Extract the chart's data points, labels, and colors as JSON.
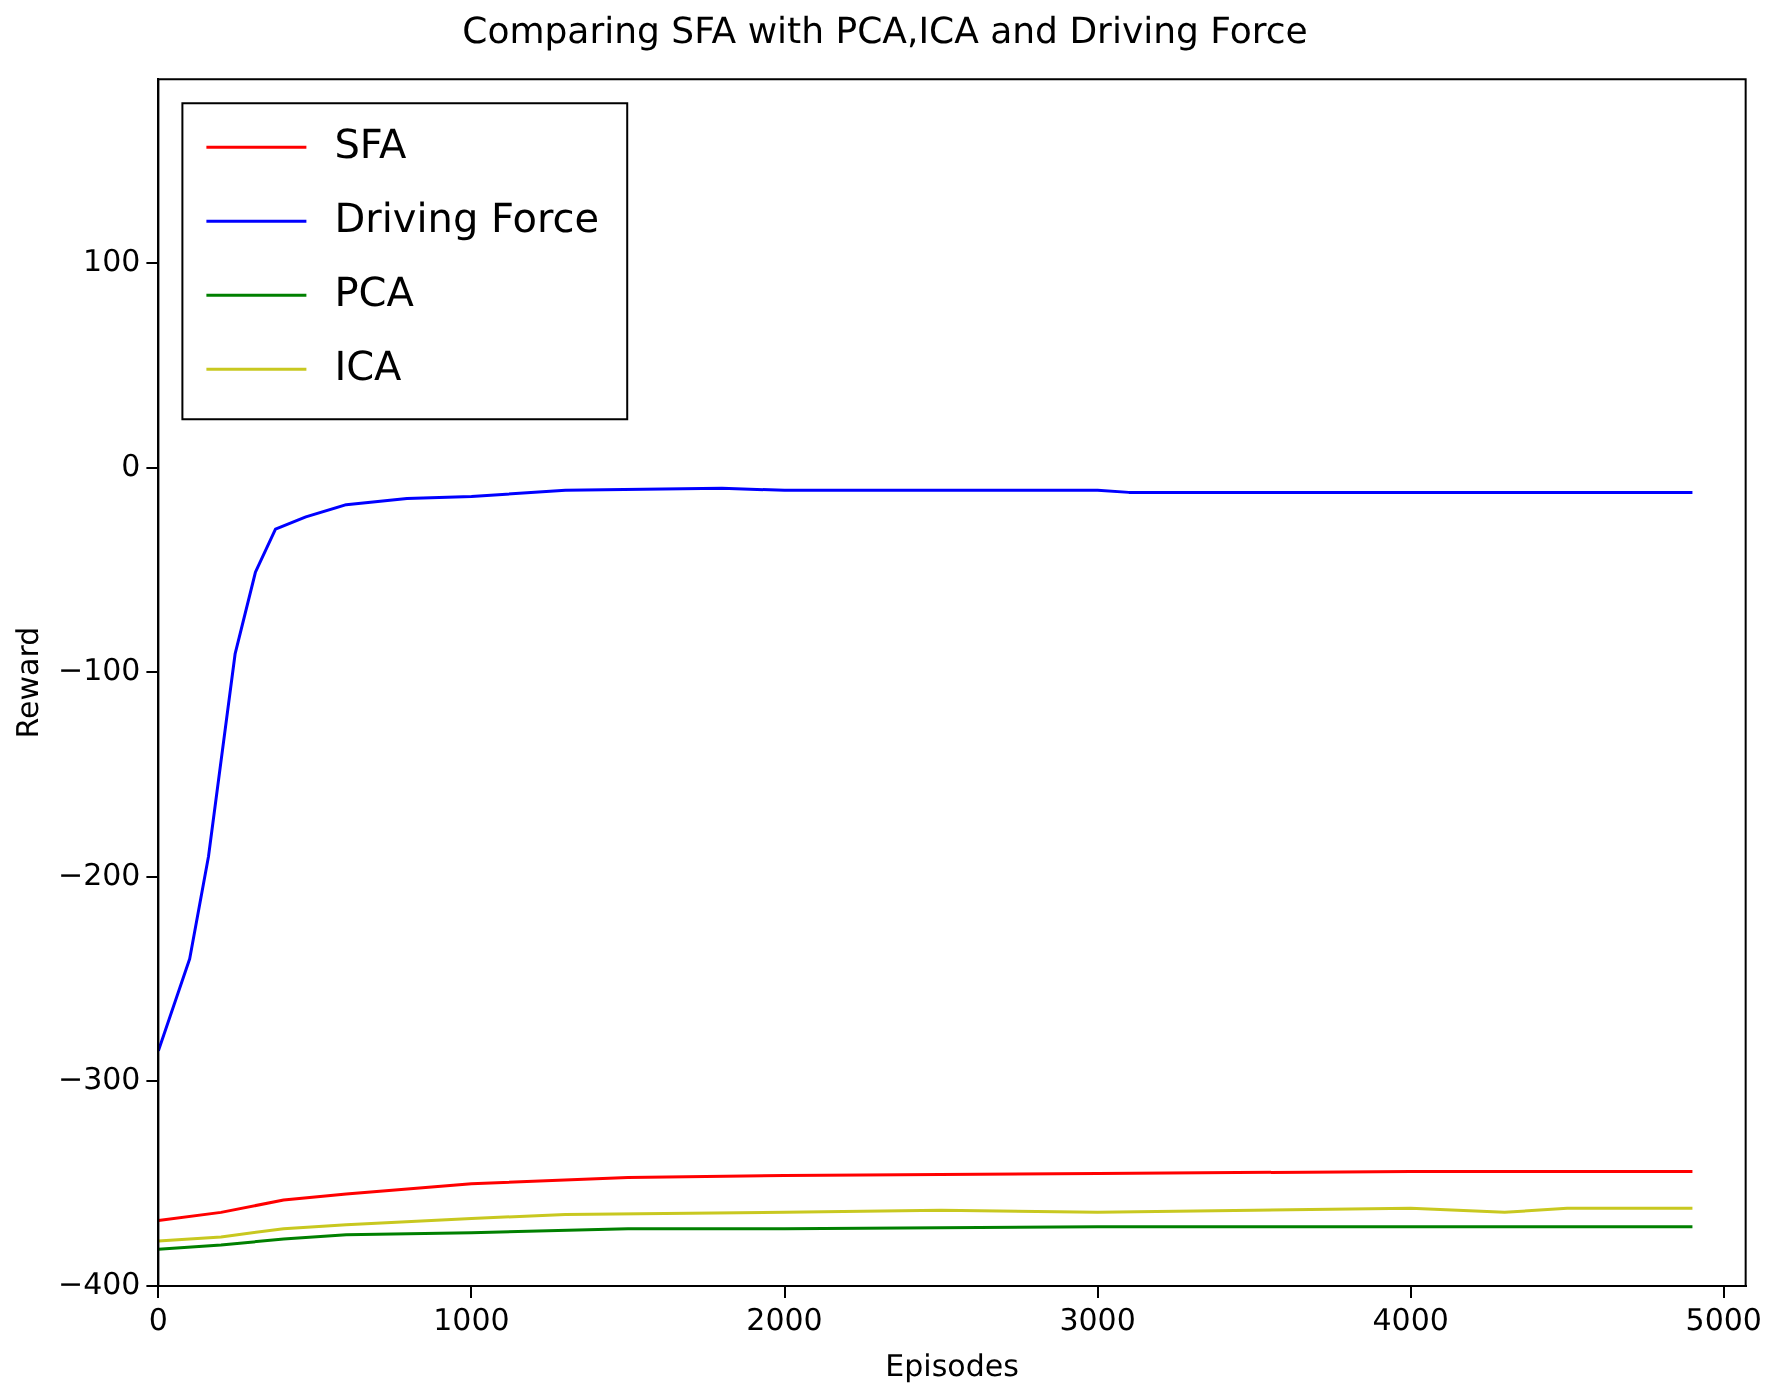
{
  "chart_data": {
    "type": "line",
    "title": "Comparing SFA with PCA,ICA and Driving Force",
    "xlabel": "Episodes",
    "ylabel": "Reward",
    "xlim": [
      0,
      5070
    ],
    "xticks": [
      0,
      1000,
      2000,
      3000,
      4000,
      5000
    ],
    "ylim": [
      -400,
      190
    ],
    "yticks": [
      -400,
      -300,
      -200,
      -100,
      0,
      100
    ],
    "grid": false,
    "legend": "top left",
    "marker": "none",
    "line_style": "solid",
    "series": [
      {
        "name": "SFA",
        "color": "#ff0000",
        "x": [
          0,
          200,
          400,
          600,
          1000,
          1500,
          2000,
          3000,
          4000,
          4900
        ],
        "values": [
          -368,
          -364,
          -358,
          -355,
          -350,
          -347,
          -346,
          -345,
          -344,
          -344
        ]
      },
      {
        "name": "Driving Force",
        "color": "#0000ff",
        "x": [
          0,
          100,
          160,
          245,
          310,
          374,
          471,
          600,
          794,
          1000,
          1300,
          1800,
          2000,
          3000,
          3100,
          4900
        ],
        "values": [
          -285,
          -240,
          -190,
          -91,
          -51,
          -30,
          -24,
          -18,
          -15,
          -14,
          -11,
          -10,
          -11,
          -11,
          -12,
          -12
        ]
      },
      {
        "name": "PCA",
        "color": "#008000",
        "x": [
          0,
          200,
          400,
          600,
          1000,
          1500,
          2000,
          3000,
          4000,
          4900
        ],
        "values": [
          -382,
          -380,
          -377,
          -375,
          -374,
          -372,
          -372,
          -371,
          -371,
          -371
        ]
      },
      {
        "name": "ICA",
        "color": "#c8c820",
        "x": [
          0,
          200,
          400,
          600,
          1000,
          1300,
          2000,
          2500,
          3000,
          3500,
          4000,
          4300,
          4500,
          4900
        ],
        "values": [
          -378,
          -376,
          -372,
          -370,
          -367,
          -365,
          -364,
          -363,
          -364,
          -363,
          -362,
          -364,
          -362,
          -362
        ]
      }
    ]
  }
}
